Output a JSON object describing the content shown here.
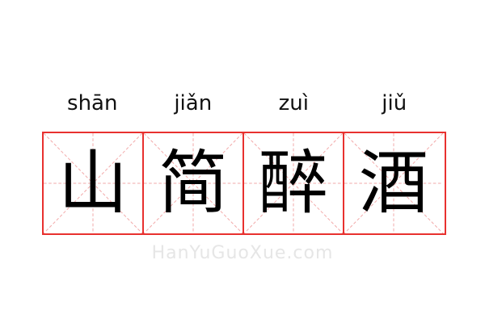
{
  "idiom": {
    "pinyin": [
      "shān",
      "jiǎn",
      "zuì",
      "jiǔ"
    ],
    "characters": [
      "山",
      "简",
      "醉",
      "酒"
    ]
  },
  "watermark": "HanYuGuoXue.com",
  "colors": {
    "grid_border": "#e8312f",
    "guide_lines": "#f2a9a9",
    "text": "#000000"
  }
}
